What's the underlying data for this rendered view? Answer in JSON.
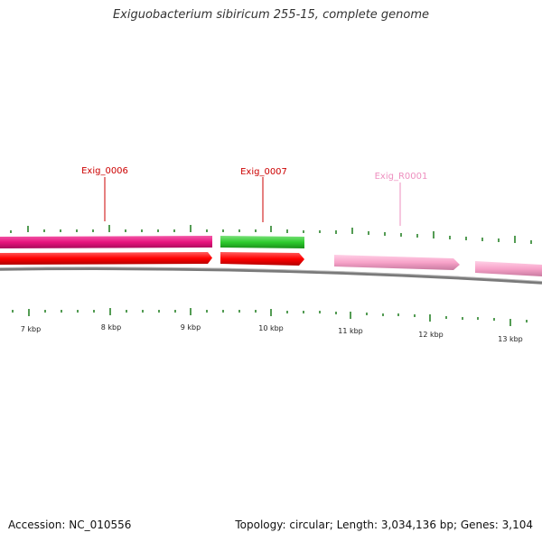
{
  "title": "Exiguobacterium sibiricum 255-15, complete genome",
  "footer": {
    "accession": "Accession: NC_010556",
    "summary": "Topology: circular; Length: 3,034,136 bp; Genes: 3,104"
  },
  "genes": [
    {
      "label": "Exig_0006",
      "color": "#cc0000"
    },
    {
      "label": "Exig_0007",
      "color": "#cc0000"
    },
    {
      "label": "Exig_R0001",
      "color": "#ee8fbf"
    }
  ],
  "kbp_labels": [
    "7 kbp",
    "8 kbp",
    "9 kbp",
    "10 kbp",
    "11 kbp",
    "12 kbp",
    "13 kbp"
  ],
  "colors": {
    "outer_magenta": "#e8147e",
    "outer_green": "#2ecc2e",
    "inner_red": "#ff0000",
    "rna_pink": "#f7a3c9",
    "backbone": "#7a7a7a",
    "ticks": "#1a7a1a"
  }
}
